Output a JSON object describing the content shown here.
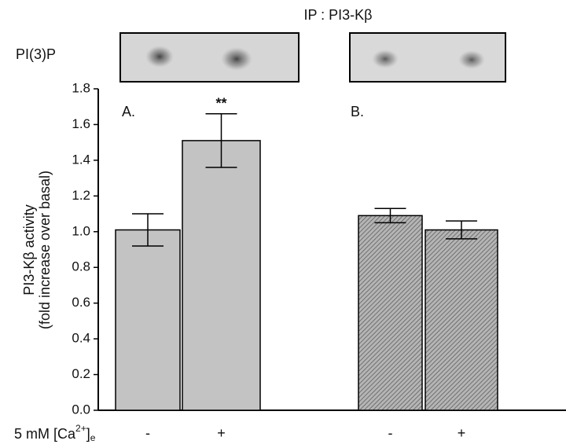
{
  "chart_data": {
    "type": "bar",
    "title": "IP : PI3-Kβ",
    "blot_label": "PI(3)P",
    "y_label": [
      "PI3-Kβ activity",
      "(fold increase over basal)"
    ],
    "x_label_parts": [
      "5 mM [Ca",
      "2+",
      "]",
      "e"
    ],
    "panel_labels": [
      "A.",
      "B."
    ],
    "significance": {
      "bar": 1,
      "label": "**"
    },
    "categories": [
      "-",
      "+",
      "-",
      "+"
    ],
    "values": [
      1.01,
      1.51,
      1.09,
      1.01
    ],
    "errors": [
      0.09,
      0.15,
      0.04,
      0.05
    ],
    "colors": [
      "#c3c3c3",
      "#c3c3c3",
      "#9a9a9a",
      "#9a9a9a"
    ],
    "hatched": [
      false,
      false,
      true,
      true
    ],
    "ylim": [
      0,
      1.8
    ],
    "yticks": [
      {
        "value": 0,
        "label": "0.0"
      },
      0.2,
      0.4,
      0.6,
      0.8,
      {
        "value": 1,
        "label": "1.0"
      },
      1.2,
      1.4,
      1.6,
      1.8
    ]
  }
}
